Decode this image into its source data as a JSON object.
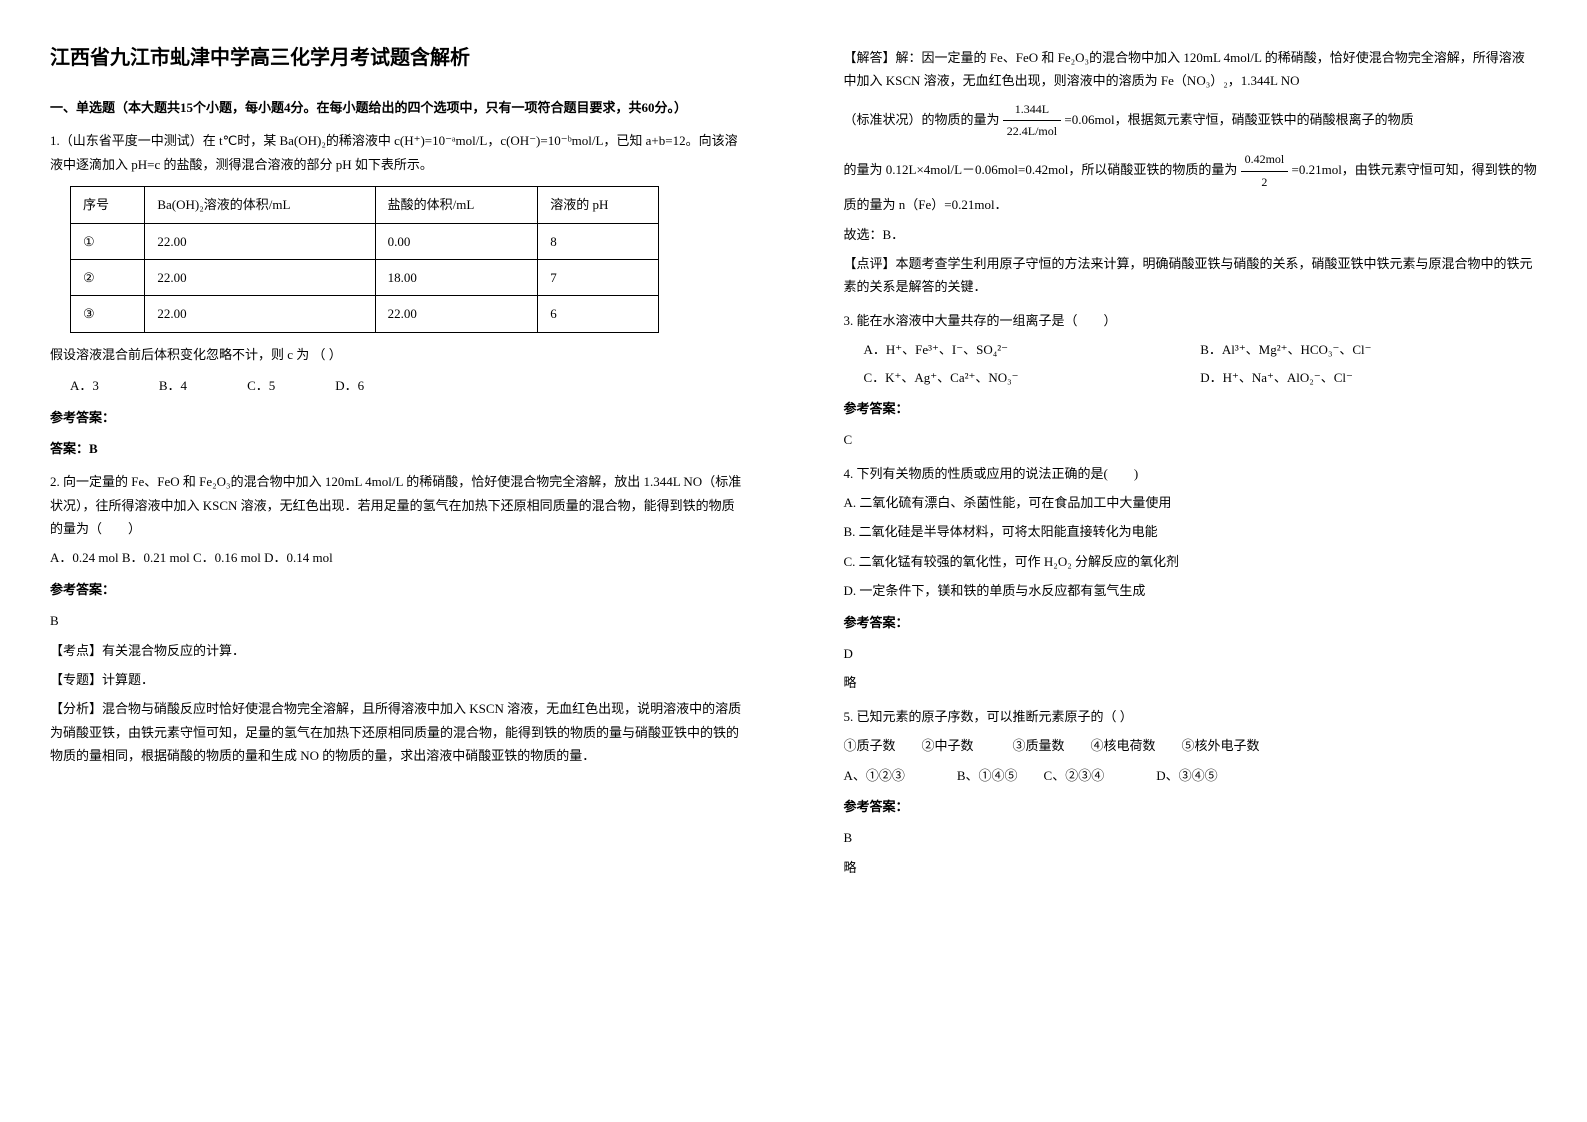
{
  "title": "江西省九江市虬津中学高三化学月考试题含解析",
  "section1": {
    "header": "一、单选题（本大题共15个小题，每小题4分。在每小题给出的四个选项中，只有一项符合题目要求，共60分。）"
  },
  "q1": {
    "text": "1.（山东省平度一中测试）在 t℃时，某 Ba(OH)₂的稀溶液中 c(H⁺)=10⁻ᵃmol/L，c(OH⁻)=10⁻ᵇmol/L，已知 a+b=12。向该溶液中逐滴加入 pH=c 的盐酸，测得混合溶液的部分 pH 如下表所示。",
    "table": {
      "headers": [
        "序号",
        "Ba(OH)₂溶液的体积/mL",
        "盐酸的体积/mL",
        "溶液的 pH"
      ],
      "rows": [
        [
          "①",
          "22.00",
          "0.00",
          "8"
        ],
        [
          "②",
          "22.00",
          "18.00",
          "7"
        ],
        [
          "③",
          "22.00",
          "22.00",
          "6"
        ]
      ]
    },
    "assumption": "假设溶液混合前后体积变化忽略不计，则 c 为   （  ）",
    "options": [
      "A．3",
      "B．4",
      "C．5",
      "D．6"
    ],
    "answerLabel": "参考答案：",
    "answer": "答案：B"
  },
  "q2": {
    "text": "2. 向一定量的 Fe、FeO 和 Fe₂O₃的混合物中加入 120mL 4mol/L 的稀硝酸，恰好使混合物完全溶解，放出 1.344L NO（标准状况），往所得溶液中加入 KSCN 溶液，无红色出现．若用足量的氢气在加热下还原相同质量的混合物，能得到铁的物质的量为（　　）",
    "options": "A．0.24 mol   B．0.21 mol   C．0.16 mol   D．0.14 mol",
    "answerLabel": "参考答案：",
    "answer": "B",
    "kaodian": "【考点】有关混合物反应的计算．",
    "zhuanti": "【专题】计算题．",
    "fenxi": "【分析】混合物与硝酸反应时恰好使混合物完全溶解，且所得溶液中加入 KSCN 溶液，无血红色出现，说明溶液中的溶质为硝酸亚铁，由铁元素守恒可知，足量的氢气在加热下还原相同质量的混合物，能得到铁的物质的量与硝酸亚铁中的铁的物质的量相同，根据硝酸的物质的量和生成 NO 的物质的量，求出溶液中硝酸亚铁的物质的量．"
  },
  "right": {
    "jieda1": "【解答】解：因一定量的 Fe、FeO 和 Fe₂O₃的混合物中加入 120mL 4mol/L 的稀硝酸，恰好使混合物完全溶解，所得溶液中加入 KSCN 溶液，无血红色出现，则溶液中的溶质为 Fe（NO₃）₂，1.344L NO",
    "frac1top": "1.344L",
    "frac1bot": "22.4L/mol",
    "jieda2": "（标准状况）的物质的量为",
    "jieda2b": "=0.06mol，根据氮元素守恒，硝酸亚铁中的硝酸根离子的物质",
    "frac2top": "0.42mol",
    "frac2bot": "2",
    "jieda3a": "的量为 0.12L×4mol/L－0.06mol=0.42mol，所以硝酸亚铁的物质的量为",
    "jieda3b": "=0.21mol，由铁元素守恒可知，得到铁的物质的量为 n（Fe）=0.21mol．",
    "guxuan": "故选：B．",
    "dianping": "【点评】本题考查学生利用原子守恒的方法来计算，明确硝酸亚铁与硝酸的关系，硝酸亚铁中铁元素与原混合物中的铁元素的关系是解答的关键．"
  },
  "q3": {
    "text": "3. 能在水溶液中大量共存的一组离子是（　　）",
    "optA": "A．H⁺、Fe³⁺、I⁻、SO₄²⁻",
    "optB": "B．Al³⁺、Mg²⁺、HCO₃⁻、Cl⁻",
    "optC": "C．K⁺、Ag⁺、Ca²⁺、NO₃⁻",
    "optD": "D．H⁺、Na⁺、AlO₂⁻、Cl⁻",
    "answerLabel": "参考答案：",
    "answer": "C"
  },
  "q4": {
    "text": "4. 下列有关物质的性质或应用的说法正确的是(　　)",
    "optA": "A. 二氧化硫有漂白、杀菌性能，可在食品加工中大量使用",
    "optB": "B. 二氧化硅是半导体材料，可将太阳能直接转化为电能",
    "optC": "C. 二氧化锰有较强的氧化性，可作 H₂O₂ 分解反应的氧化剂",
    "optD": "D. 一定条件下，镁和铁的单质与水反应都有氢气生成",
    "answerLabel": "参考答案：",
    "answer": "D",
    "lue": "略"
  },
  "q5": {
    "text": "5. 已知元素的原子序数，可以推断元素原子的（  ）",
    "items": "①质子数　　②中子数　　　③质量数　　④核电荷数　　⑤核外电子数",
    "options": "A、①②③　　　　B、①④⑤　　C、②③④　　　　D、③④⑤",
    "answerLabel": "参考答案：",
    "answer": "B",
    "lue": "略"
  }
}
